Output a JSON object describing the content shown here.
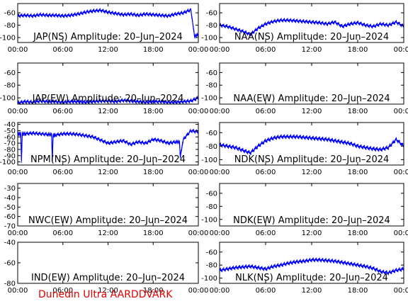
{
  "footer_text": "Dunedin Ultra AARDDVARK",
  "series_color": "#0000ff",
  "footer_color": "#e00000",
  "chart_data": [
    {
      "type": "line",
      "title": "JAP(NS) Amplitude: 20–Jun–2024",
      "xlim": [
        0,
        24
      ],
      "ylim": [
        -108,
        -45
      ],
      "yticks": [
        -60,
        -80,
        -100
      ],
      "xticks": [
        "00:00",
        "06:00",
        "12:00",
        "18:00",
        "00:00"
      ],
      "x": [
        0,
        1,
        2,
        3,
        4,
        5,
        6,
        7,
        8,
        9,
        10,
        11,
        12,
        13,
        14,
        15,
        16,
        17,
        18,
        19,
        20,
        21,
        22,
        23,
        23.5,
        24
      ],
      "y": [
        -65,
        -64,
        -65,
        -63,
        -64,
        -64,
        -65,
        -64,
        -62,
        -59,
        -57,
        -56,
        -59,
        -61,
        -63,
        -62,
        -64,
        -62,
        -63,
        -64,
        -65,
        -62,
        -60,
        -55,
        -98,
        -95
      ]
    },
    {
      "type": "line",
      "title": "NAA(NS) Amplitude: 20–Jun–2024",
      "xlim": [
        0,
        24
      ],
      "ylim": [
        -108,
        -45
      ],
      "yticks": [
        -60,
        -80,
        -100
      ],
      "xticks": [
        "00:00",
        "06:00",
        "12:00",
        "18:00",
        "00:00"
      ],
      "x": [
        0,
        1,
        2,
        3,
        4,
        5,
        6,
        7,
        8,
        9,
        10,
        11,
        12,
        13,
        14,
        15,
        16,
        17,
        18,
        19,
        20,
        21,
        22,
        23,
        24
      ],
      "y": [
        -80,
        -82,
        -86,
        -90,
        -95,
        -85,
        -78,
        -74,
        -72,
        -72,
        -73,
        -74,
        -75,
        -76,
        -78,
        -75,
        -82,
        -78,
        -76,
        -80,
        -82,
        -78,
        -80,
        -75,
        -82
      ]
    },
    {
      "type": "line",
      "title": "JAP(EW) Amplitude: 20–Jun–2024",
      "xlim": [
        0,
        24
      ],
      "ylim": [
        -110,
        -45
      ],
      "yticks": [
        -60,
        -80,
        -100
      ],
      "xticks": [
        "00:00",
        "06:00",
        "12:00",
        "18:00",
        "00:00"
      ],
      "x": [
        0,
        1,
        2,
        3,
        4,
        5,
        6,
        7,
        8,
        9,
        10,
        11,
        12,
        13,
        14,
        15,
        16,
        17,
        18,
        19,
        20,
        21,
        22,
        23,
        24
      ],
      "y": [
        -108,
        -106,
        -107,
        -105,
        -106,
        -106,
        -107,
        -106,
        -106,
        -107,
        -106,
        -105,
        -105,
        -106,
        -104,
        -105,
        -106,
        -107,
        -106,
        -106,
        -107,
        -107,
        -106,
        -105,
        -100
      ]
    },
    {
      "type": "line",
      "title": "NAA(EW) Amplitude: 20–Jun–2024",
      "xlim": [
        0,
        24
      ],
      "ylim": [
        -110,
        -45
      ],
      "yticks": [
        -60,
        -80,
        -100
      ],
      "xticks": [
        "00:00",
        "06:00",
        "12:00",
        "18:00",
        "00:00"
      ],
      "x": [],
      "y": []
    },
    {
      "type": "line",
      "title": "NPM(NS) Amplitude: 20–Jun–2024",
      "xlim": [
        0,
        24
      ],
      "ylim": [
        -105,
        -37
      ],
      "yticks": [
        -40,
        -50,
        -60,
        -70,
        -80,
        -90,
        -100
      ],
      "xticks": [
        "00:00",
        "06:00",
        "12:00",
        "18:00",
        "00:00"
      ],
      "x": [
        0,
        0.4,
        0.5,
        0.6,
        1,
        2,
        3,
        4,
        4.5,
        4.6,
        4.7,
        5,
        6,
        7,
        8,
        9,
        10,
        11,
        12,
        13,
        14,
        15,
        16,
        17,
        18,
        19,
        20,
        21,
        21.5,
        21.6,
        22,
        23,
        24
      ],
      "y": [
        -55,
        -55,
        -98,
        -55,
        -55,
        -54,
        -55,
        -56,
        -56,
        -98,
        -58,
        -57,
        -55,
        -55,
        -56,
        -58,
        -60,
        -65,
        -70,
        -68,
        -66,
        -72,
        -68,
        -70,
        -64,
        -66,
        -70,
        -68,
        -68,
        -92,
        -64,
        -50,
        -52
      ]
    },
    {
      "type": "line",
      "title": "NDK(NS) Amplitude: 20–Jun–2024",
      "xlim": [
        0,
        24
      ],
      "ylim": [
        -108,
        -45
      ],
      "yticks": [
        -60,
        -80,
        -100
      ],
      "xticks": [
        "00:00",
        "06:00",
        "12:00",
        "18:00",
        "00:00"
      ],
      "x": [
        0,
        1,
        2,
        3,
        4,
        5,
        6,
        7,
        8,
        9,
        10,
        11,
        12,
        13,
        14,
        15,
        16,
        17,
        18,
        19,
        20,
        21,
        22,
        23,
        24
      ],
      "y": [
        -78,
        -80,
        -82,
        -86,
        -90,
        -80,
        -72,
        -68,
        -66,
        -66,
        -66,
        -67,
        -68,
        -69,
        -70,
        -72,
        -74,
        -76,
        -80,
        -82,
        -84,
        -85,
        -82,
        -70,
        -80
      ]
    },
    {
      "type": "line",
      "title": "NWC(EW) Amplitude: 20–Jun–2024",
      "xlim": [
        0,
        24
      ],
      "ylim": [
        -70,
        -25
      ],
      "yticks": [
        -30,
        -40,
        -50,
        -60,
        -70
      ],
      "xticks": [
        "00:00",
        "06:00",
        "12:00",
        "18:00",
        "00:00"
      ],
      "x": [],
      "y": []
    },
    {
      "type": "line",
      "title": "NDK(EW) Amplitude: 20–Jun–2024",
      "xlim": [
        0,
        24
      ],
      "ylim": [
        -110,
        -45
      ],
      "yticks": [
        -60,
        -80,
        -100
      ],
      "xticks": [
        "00:00",
        "06:00",
        "12:00",
        "18:00",
        "00:00"
      ],
      "x": [],
      "y": []
    },
    {
      "type": "line",
      "title": "IND(EW) Amplitude: 20–Jun–2024",
      "xlim": [
        0,
        24
      ],
      "ylim": [
        -80,
        -40
      ],
      "yticks": [
        -40,
        -60,
        -80
      ],
      "xticks": [
        "00:00",
        "06:00",
        "12:00",
        "18:00",
        "00:00"
      ],
      "x": [],
      "y": []
    },
    {
      "type": "line",
      "title": "NLK(NS) Amplitude: 20–Jun–2024",
      "xlim": [
        0,
        24
      ],
      "ylim": [
        -108,
        -45
      ],
      "yticks": [
        -60,
        -80,
        -100
      ],
      "xticks": [
        "00:00",
        "06:00",
        "12:00",
        "18:00",
        "00:00"
      ],
      "x": [
        0,
        1,
        2,
        3,
        4,
        5,
        6,
        7,
        8,
        9,
        10,
        11,
        12,
        13,
        14,
        15,
        16,
        17,
        18,
        19,
        20,
        21,
        22,
        23,
        24
      ],
      "y": [
        -88,
        -86,
        -84,
        -83,
        -82,
        -84,
        -86,
        -82,
        -80,
        -77,
        -75,
        -74,
        -72,
        -72,
        -73,
        -74,
        -76,
        -78,
        -80,
        -82,
        -85,
        -90,
        -92,
        -88,
        -86
      ]
    }
  ]
}
